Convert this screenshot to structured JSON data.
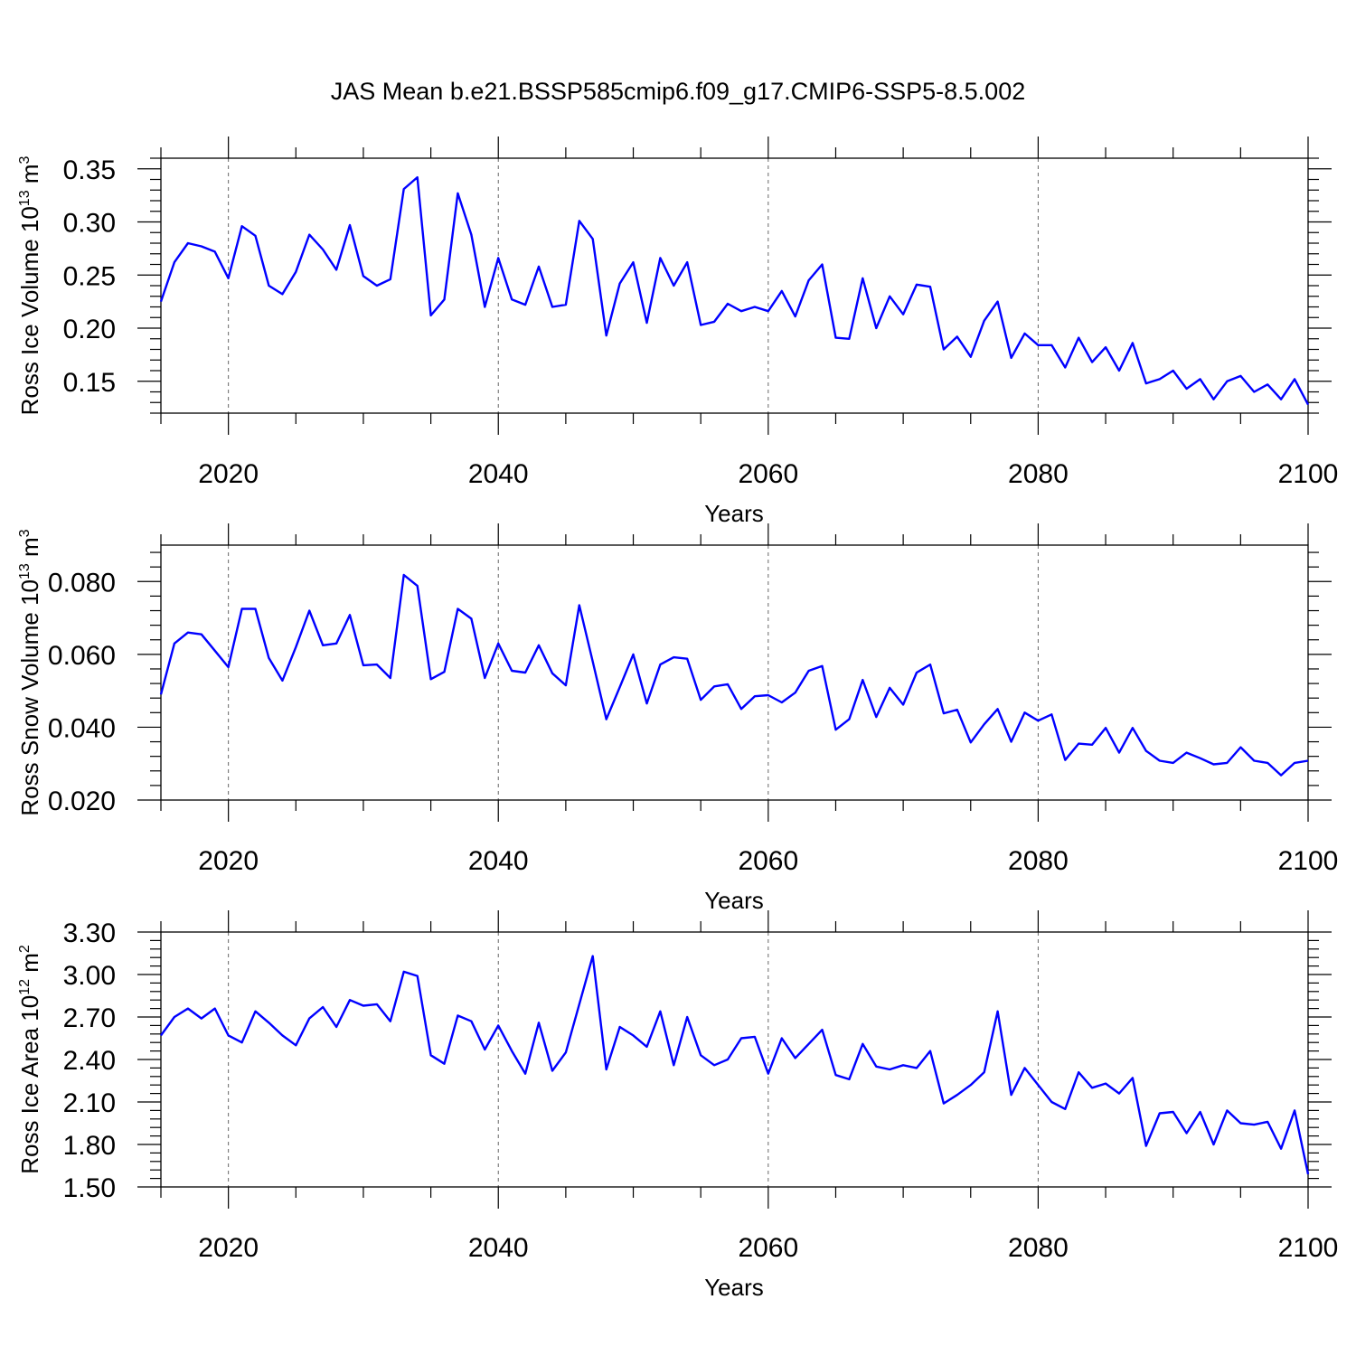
{
  "title": "JAS Mean b.e21.BSSP585cmip6.f09_g17.CMIP6-SSP5-8.5.002",
  "line_color": "#0000ff",
  "chart_data": [
    {
      "type": "line",
      "xlabel": "Years",
      "ylabel": "Ross Ice Volume 10",
      "ylabel_exp": "13",
      "ylabel_unit": " m",
      "ylabel_unit_exp": "3",
      "xlim": [
        2015,
        2100
      ],
      "ylim": [
        0.12,
        0.36
      ],
      "x_ticks": [
        "2020",
        "2040",
        "2060",
        "2080",
        "2100"
      ],
      "y_ticks": [
        {
          "value": 0.15,
          "label": "0.15"
        },
        {
          "value": 0.2,
          "label": "0.20"
        },
        {
          "value": 0.25,
          "label": "0.25"
        },
        {
          "value": 0.3,
          "label": "0.30"
        },
        {
          "value": 0.35,
          "label": "0.35"
        }
      ],
      "x": [
        2015,
        2016,
        2017,
        2018,
        2019,
        2020,
        2021,
        2022,
        2023,
        2024,
        2025,
        2026,
        2027,
        2028,
        2029,
        2030,
        2031,
        2032,
        2033,
        2034,
        2035,
        2036,
        2037,
        2038,
        2039,
        2040,
        2041,
        2042,
        2043,
        2044,
        2045,
        2046,
        2047,
        2048,
        2049,
        2050,
        2051,
        2052,
        2053,
        2054,
        2055,
        2056,
        2057,
        2058,
        2059,
        2060,
        2061,
        2062,
        2063,
        2064,
        2065,
        2066,
        2067,
        2068,
        2069,
        2070,
        2071,
        2072,
        2073,
        2074,
        2075,
        2076,
        2077,
        2078,
        2079,
        2080,
        2081,
        2082,
        2083,
        2084,
        2085,
        2086,
        2087,
        2088,
        2089,
        2090,
        2091,
        2092,
        2093,
        2094,
        2095,
        2096,
        2097,
        2098,
        2099,
        2100
      ],
      "values": [
        0.225,
        0.262,
        0.28,
        0.277,
        0.272,
        0.247,
        0.296,
        0.287,
        0.24,
        0.232,
        0.253,
        0.288,
        0.274,
        0.255,
        0.297,
        0.249,
        0.24,
        0.246,
        0.331,
        0.342,
        0.212,
        0.227,
        0.327,
        0.288,
        0.22,
        0.266,
        0.227,
        0.222,
        0.258,
        0.22,
        0.222,
        0.301,
        0.284,
        0.193,
        0.242,
        0.262,
        0.205,
        0.266,
        0.24,
        0.262,
        0.203,
        0.206,
        0.223,
        0.216,
        0.22,
        0.216,
        0.235,
        0.211,
        0.245,
        0.26,
        0.191,
        0.19,
        0.247,
        0.2,
        0.23,
        0.213,
        0.241,
        0.239,
        0.18,
        0.192,
        0.173,
        0.207,
        0.225,
        0.172,
        0.195,
        0.184,
        0.184,
        0.163,
        0.191,
        0.168,
        0.182,
        0.16,
        0.186,
        0.148,
        0.152,
        0.16,
        0.143,
        0.152,
        0.133,
        0.15,
        0.155,
        0.14,
        0.147,
        0.133,
        0.152,
        0.128
      ]
    },
    {
      "type": "line",
      "xlabel": "Years",
      "ylabel": "Ross Snow Volume 10",
      "ylabel_exp": "13",
      "ylabel_unit": " m",
      "ylabel_unit_exp": "3",
      "xlim": [
        2015,
        2100
      ],
      "ylim": [
        0.02,
        0.09
      ],
      "x_ticks": [
        "2020",
        "2040",
        "2060",
        "2080",
        "2100"
      ],
      "y_ticks": [
        {
          "value": 0.02,
          "label": "0.020"
        },
        {
          "value": 0.04,
          "label": "0.040"
        },
        {
          "value": 0.06,
          "label": "0.060"
        },
        {
          "value": 0.08,
          "label": "0.080"
        }
      ],
      "x": [
        2015,
        2016,
        2017,
        2018,
        2019,
        2020,
        2021,
        2022,
        2023,
        2024,
        2025,
        2026,
        2027,
        2028,
        2029,
        2030,
        2031,
        2032,
        2033,
        2034,
        2035,
        2036,
        2037,
        2038,
        2039,
        2040,
        2041,
        2042,
        2043,
        2044,
        2045,
        2046,
        2047,
        2048,
        2049,
        2050,
        2051,
        2052,
        2053,
        2054,
        2055,
        2056,
        2057,
        2058,
        2059,
        2060,
        2061,
        2062,
        2063,
        2064,
        2065,
        2066,
        2067,
        2068,
        2069,
        2070,
        2071,
        2072,
        2073,
        2074,
        2075,
        2076,
        2077,
        2078,
        2079,
        2080,
        2081,
        2082,
        2083,
        2084,
        2085,
        2086,
        2087,
        2088,
        2089,
        2090,
        2091,
        2092,
        2093,
        2094,
        2095,
        2096,
        2097,
        2098,
        2099,
        2100
      ],
      "values": [
        0.049,
        0.063,
        0.066,
        0.0655,
        0.061,
        0.0565,
        0.0725,
        0.0725,
        0.059,
        0.0528,
        0.062,
        0.072,
        0.0625,
        0.063,
        0.0708,
        0.057,
        0.0572,
        0.0535,
        0.0818,
        0.0788,
        0.0532,
        0.0552,
        0.0725,
        0.0698,
        0.0535,
        0.063,
        0.0555,
        0.055,
        0.0625,
        0.0548,
        0.0515,
        0.0735,
        0.058,
        0.0422,
        0.051,
        0.06,
        0.0465,
        0.0572,
        0.0592,
        0.0588,
        0.0475,
        0.0512,
        0.0518,
        0.045,
        0.0485,
        0.0488,
        0.0468,
        0.0495,
        0.0555,
        0.0568,
        0.0393,
        0.0422,
        0.053,
        0.0428,
        0.0508,
        0.0462,
        0.055,
        0.0572,
        0.0438,
        0.0448,
        0.0358,
        0.0408,
        0.045,
        0.036,
        0.044,
        0.0418,
        0.0435,
        0.031,
        0.0355,
        0.0352,
        0.0398,
        0.033,
        0.0398,
        0.0335,
        0.0308,
        0.0302,
        0.033,
        0.0315,
        0.0298,
        0.0302,
        0.0345,
        0.0308,
        0.0302,
        0.0268,
        0.0302,
        0.0308
      ]
    },
    {
      "type": "line",
      "xlabel": "Years",
      "ylabel": "Ross Ice Area 10",
      "ylabel_exp": "12",
      "ylabel_unit": " m",
      "ylabel_unit_exp": "2",
      "xlim": [
        2015,
        2100
      ],
      "ylim": [
        1.5,
        3.3
      ],
      "x_ticks": [
        "2020",
        "2040",
        "2060",
        "2080",
        "2100"
      ],
      "y_ticks": [
        {
          "value": 1.5,
          "label": "1.50"
        },
        {
          "value": 1.8,
          "label": "1.80"
        },
        {
          "value": 2.1,
          "label": "2.10"
        },
        {
          "value": 2.4,
          "label": "2.40"
        },
        {
          "value": 2.7,
          "label": "2.70"
        },
        {
          "value": 3.0,
          "label": "3.00"
        },
        {
          "value": 3.3,
          "label": "3.30"
        }
      ],
      "x": [
        2015,
        2016,
        2017,
        2018,
        2019,
        2020,
        2021,
        2022,
        2023,
        2024,
        2025,
        2026,
        2027,
        2028,
        2029,
        2030,
        2031,
        2032,
        2033,
        2034,
        2035,
        2036,
        2037,
        2038,
        2039,
        2040,
        2041,
        2042,
        2043,
        2044,
        2045,
        2046,
        2047,
        2048,
        2049,
        2050,
        2051,
        2052,
        2053,
        2054,
        2055,
        2056,
        2057,
        2058,
        2059,
        2060,
        2061,
        2062,
        2063,
        2064,
        2065,
        2066,
        2067,
        2068,
        2069,
        2070,
        2071,
        2072,
        2073,
        2074,
        2075,
        2076,
        2077,
        2078,
        2079,
        2080,
        2081,
        2082,
        2083,
        2084,
        2085,
        2086,
        2087,
        2088,
        2089,
        2090,
        2091,
        2092,
        2093,
        2094,
        2095,
        2096,
        2097,
        2098,
        2099,
        2100
      ],
      "values": [
        2.57,
        2.7,
        2.76,
        2.69,
        2.76,
        2.57,
        2.52,
        2.74,
        2.66,
        2.57,
        2.5,
        2.69,
        2.77,
        2.63,
        2.82,
        2.78,
        2.79,
        2.67,
        3.02,
        2.99,
        2.43,
        2.37,
        2.71,
        2.67,
        2.47,
        2.64,
        2.46,
        2.3,
        2.66,
        2.32,
        2.45,
        2.79,
        3.13,
        2.33,
        2.63,
        2.57,
        2.49,
        2.74,
        2.36,
        2.7,
        2.43,
        2.36,
        2.4,
        2.55,
        2.56,
        2.3,
        2.55,
        2.41,
        2.51,
        2.61,
        2.29,
        2.26,
        2.51,
        2.35,
        2.33,
        2.36,
        2.34,
        2.46,
        2.09,
        2.15,
        2.22,
        2.31,
        2.74,
        2.15,
        2.34,
        2.22,
        2.1,
        2.05,
        2.31,
        2.2,
        2.23,
        2.16,
        2.27,
        1.79,
        2.02,
        2.03,
        1.88,
        2.03,
        1.8,
        2.04,
        1.95,
        1.94,
        1.96,
        1.77,
        2.04,
        1.59
      ]
    }
  ]
}
